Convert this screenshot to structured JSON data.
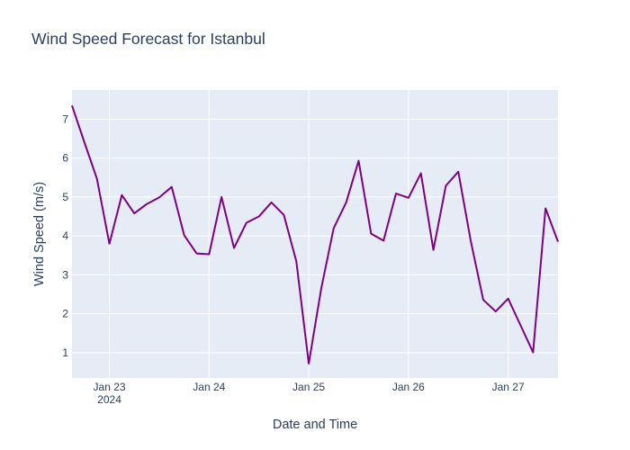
{
  "chart_data": {
    "type": "line",
    "title": "Wind Speed Forecast for Istanbul",
    "xlabel": "Date and Time",
    "ylabel": "Wind Speed (m/s)",
    "ylim": [
      0.35,
      7.75
    ],
    "xlim": [
      "2024-01-22 15:00",
      "2024-01-27 12:00"
    ],
    "x_ticks": [
      {
        "label": "Jan 23",
        "sub": "2024",
        "x": "2024-01-23 00:00"
      },
      {
        "label": "Jan 24",
        "sub": "",
        "x": "2024-01-24 00:00"
      },
      {
        "label": "Jan 25",
        "sub": "",
        "x": "2024-01-25 00:00"
      },
      {
        "label": "Jan 26",
        "sub": "",
        "x": "2024-01-26 00:00"
      },
      {
        "label": "Jan 27",
        "sub": "",
        "x": "2024-01-27 00:00"
      }
    ],
    "y_ticks": [
      1,
      2,
      3,
      4,
      5,
      6,
      7
    ],
    "grid": true,
    "series": [
      {
        "color": "#800080",
        "x": [
          "2024-01-22 15:00",
          "2024-01-22 18:00",
          "2024-01-22 21:00",
          "2024-01-23 00:00",
          "2024-01-23 03:00",
          "2024-01-23 06:00",
          "2024-01-23 09:00",
          "2024-01-23 12:00",
          "2024-01-23 15:00",
          "2024-01-23 18:00",
          "2024-01-23 21:00",
          "2024-01-24 00:00",
          "2024-01-24 03:00",
          "2024-01-24 06:00",
          "2024-01-24 09:00",
          "2024-01-24 12:00",
          "2024-01-24 15:00",
          "2024-01-24 18:00",
          "2024-01-24 21:00",
          "2024-01-25 00:00",
          "2024-01-25 03:00",
          "2024-01-25 06:00",
          "2024-01-25 09:00",
          "2024-01-25 12:00",
          "2024-01-25 15:00",
          "2024-01-25 18:00",
          "2024-01-25 21:00",
          "2024-01-26 00:00",
          "2024-01-26 03:00",
          "2024-01-26 06:00",
          "2024-01-26 09:00",
          "2024-01-26 12:00",
          "2024-01-26 15:00",
          "2024-01-26 18:00",
          "2024-01-26 21:00",
          "2024-01-27 00:00",
          "2024-01-27 03:00",
          "2024-01-27 06:00",
          "2024-01-27 09:00",
          "2024-01-27 12:00"
        ],
        "values": [
          7.35,
          6.4,
          5.47,
          3.8,
          5.05,
          4.58,
          4.82,
          4.99,
          5.26,
          4.02,
          3.55,
          3.53,
          5.0,
          3.69,
          4.34,
          4.5,
          4.86,
          4.54,
          3.35,
          0.72,
          2.65,
          4.2,
          4.86,
          5.93,
          4.06,
          3.88,
          5.09,
          4.98,
          5.61,
          3.64,
          5.29,
          5.65,
          3.87,
          2.36,
          2.06,
          2.39,
          1.7,
          1.01,
          4.71,
          3.85
        ]
      }
    ]
  }
}
